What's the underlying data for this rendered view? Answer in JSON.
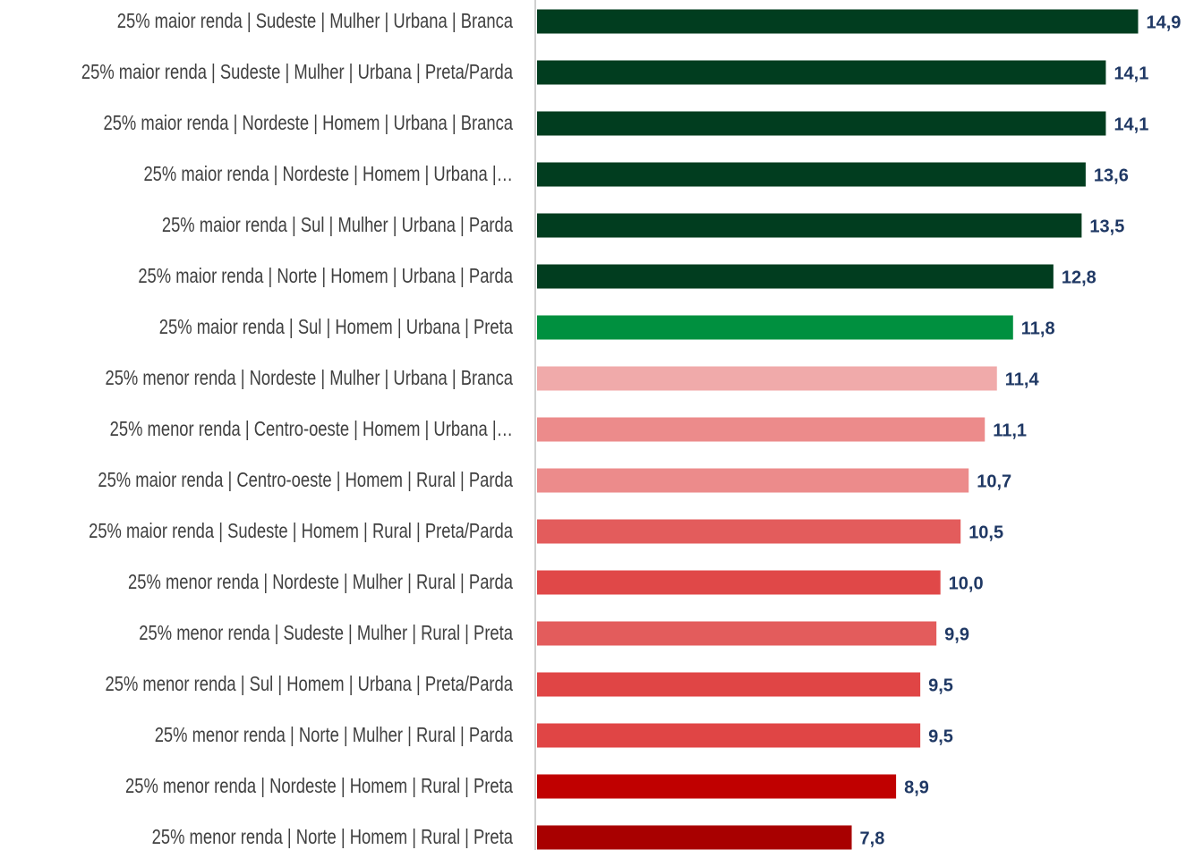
{
  "chart_data": {
    "type": "barh",
    "categories": [
      "25% maior renda | Sudeste | Mulher | Urbana | Branca",
      "25% maior renda | Sudeste | Mulher | Urbana | Preta/Parda",
      "25% maior renda | Nordeste | Homem |  Urbana | Branca",
      "25% maior renda | Nordeste | Homem |  Urbana |…",
      "25% maior renda | Sul | Mulher | Urbana | Parda",
      "25% maior renda | Norte | Homem |  Urbana | Parda",
      "25% maior renda | Sul | Homem |  Urbana | Preta",
      "25% menor renda | Nordeste | Mulher | Urbana | Branca",
      "25% menor renda | Centro-oeste | Homem |  Urbana |…",
      "25% maior renda | Centro-oeste | Homem |  Rural | Parda",
      "25% maior renda | Sudeste | Homem |  Rural | Preta/Parda",
      "25% menor renda | Nordeste | Mulher | Rural | Parda",
      "25% menor renda | Sudeste | Mulher | Rural | Preta",
      "25% menor renda | Sul | Homem |  Urbana | Preta/Parda",
      "25% menor renda | Norte | Mulher | Rural | Parda",
      "25% menor renda | Nordeste | Homem |  Rural | Preta",
      "25% menor renda | Norte | Homem |  Rural | Preta"
    ],
    "values": [
      14.9,
      14.1,
      14.1,
      13.6,
      13.5,
      12.8,
      11.8,
      11.4,
      11.1,
      10.7,
      10.5,
      10.0,
      9.9,
      9.5,
      9.5,
      8.9,
      7.8
    ],
    "value_labels": [
      "14,9",
      "14,1",
      "14,1",
      "13,6",
      "13,5",
      "12,8",
      "11,8",
      "11,4",
      "11,1",
      "10,7",
      "10,5",
      "10,0",
      "9,9",
      "9,5",
      "9,5",
      "8,9",
      "7,8"
    ],
    "colors": [
      "#013d1f",
      "#013d1f",
      "#013d1f",
      "#013d1f",
      "#013d1f",
      "#013d1f",
      "#00903f",
      "#f0aaaa",
      "#ec8b8b",
      "#ec8b8b",
      "#e35c5c",
      "#e04848",
      "#e35c5c",
      "#e04545",
      "#e04545",
      "#c00000",
      "#a80000"
    ],
    "xlim": [
      0,
      15
    ]
  }
}
